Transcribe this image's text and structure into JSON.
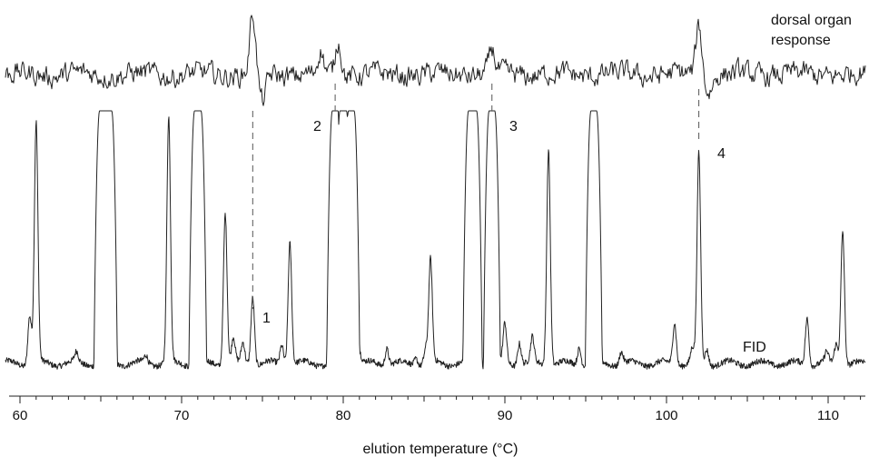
{
  "chart_data": {
    "type": "line",
    "title": "",
    "xlabel": "elution temperature (°C)",
    "ylabel": "",
    "xlim": [
      59.5,
      112
    ],
    "xticks": [
      60,
      70,
      80,
      90,
      100,
      110
    ],
    "grid": false,
    "series": [
      {
        "name": "dorsal organ response",
        "baseline_noise": 0.09,
        "peaks": [
          {
            "x": 74.4,
            "height": 0.95,
            "undershoot": -0.45
          },
          {
            "x": 78.6,
            "height": 0.35,
            "undershoot": 0
          },
          {
            "x": 79.7,
            "height": 0.55,
            "undershoot": 0
          },
          {
            "x": 89.2,
            "height": 0.38,
            "undershoot": 0
          },
          {
            "x": 102.0,
            "height": 0.8,
            "undershoot": -0.25
          }
        ]
      },
      {
        "name": "FID",
        "baseline_noise": 0.012,
        "offscale_peaks": [
          {
            "x": 65.3,
            "width": 0.75
          },
          {
            "x": 71.0,
            "width": 0.4
          },
          {
            "x": 79.5,
            "width": 0.35,
            "dip": 0.32
          },
          {
            "x": 80.0,
            "width": 0.4
          },
          {
            "x": 80.5,
            "width": 0.35
          },
          {
            "x": 88.0,
            "width": 0.5
          },
          {
            "x": 89.2,
            "width": 0.35
          },
          {
            "x": 95.5,
            "width": 0.35
          }
        ],
        "peaks": [
          {
            "x": 60.6,
            "height": 0.2
          },
          {
            "x": 61.0,
            "height": 0.98
          },
          {
            "x": 63.5,
            "height": 0.04
          },
          {
            "x": 65.8,
            "height": 0.03
          },
          {
            "x": 67.8,
            "height": 0.03
          },
          {
            "x": 69.2,
            "height": 1.0
          },
          {
            "x": 72.7,
            "height": 0.62
          },
          {
            "x": 73.2,
            "height": 0.1
          },
          {
            "x": 73.8,
            "height": 0.08
          },
          {
            "x": 74.4,
            "height": 0.28
          },
          {
            "x": 76.2,
            "height": 0.08
          },
          {
            "x": 76.7,
            "height": 0.5
          },
          {
            "x": 81.0,
            "height": 0.05
          },
          {
            "x": 82.7,
            "height": 0.07
          },
          {
            "x": 84.5,
            "height": 0.03
          },
          {
            "x": 85.4,
            "height": 0.42
          },
          {
            "x": 85.1,
            "height": 0.06
          },
          {
            "x": 90.0,
            "height": 0.16
          },
          {
            "x": 90.9,
            "height": 0.09
          },
          {
            "x": 91.7,
            "height": 0.1
          },
          {
            "x": 92.7,
            "height": 0.88
          },
          {
            "x": 94.6,
            "height": 0.07
          },
          {
            "x": 97.2,
            "height": 0.05
          },
          {
            "x": 100.5,
            "height": 0.17
          },
          {
            "x": 101.6,
            "height": 0.06
          },
          {
            "x": 102.0,
            "height": 0.85
          },
          {
            "x": 102.5,
            "height": 0.06
          },
          {
            "x": 108.7,
            "height": 0.19
          },
          {
            "x": 109.9,
            "height": 0.04
          },
          {
            "x": 110.5,
            "height": 0.08
          },
          {
            "x": 110.9,
            "height": 0.55
          }
        ]
      }
    ],
    "annotations": [
      {
        "text": "1",
        "x": 74.4,
        "link_x": 74.4
      },
      {
        "text": "2",
        "x": 79.5,
        "link_x": 79.5
      },
      {
        "text": "3",
        "x": 89.2,
        "link_x": 89.2
      },
      {
        "text": "4",
        "x": 102.0,
        "link_x": 102.0
      }
    ],
    "trace_labels": {
      "dorsal": [
        "dorsal organ",
        "response"
      ],
      "fid": "FID"
    }
  }
}
